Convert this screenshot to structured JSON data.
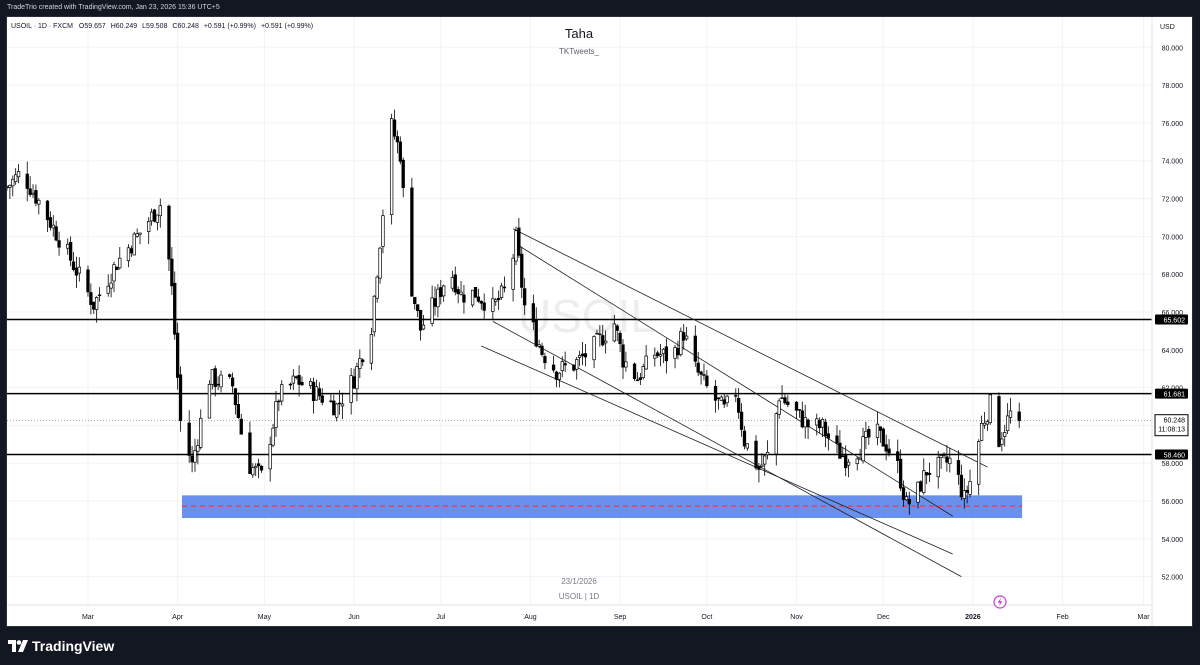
{
  "header": {
    "creator_line": "TradeTrio created with TradingView.com, Jan 23, 2026 15:36 UTC+5"
  },
  "footer": {
    "logo_text": "TradingView"
  },
  "chart_data": {
    "type": "candlestick",
    "title": "Taha",
    "subtitle": "TKTweets_",
    "watermark": "USOIL",
    "legend": {
      "symbol": "USOIL · 1D · FXCM",
      "open": "O59.657",
      "high": "H60.249",
      "low": "L59.508",
      "close": "C60.248",
      "change": "+0.591 (+0.99%)",
      "change_color": "#000000"
    },
    "currency_label": "USD",
    "bottom_caption_date": "23/1/2026",
    "bottom_caption_symbol": "USOIL | 1D",
    "y_axis": {
      "ylim": [
        50.5,
        81.6
      ],
      "ticks": [
        "52.000",
        "54.000",
        "56.000",
        "58.000",
        "60.000",
        "62.000",
        "64.000",
        "66.000",
        "68.000",
        "70.000",
        "72.000",
        "74.000",
        "76.000",
        "78.000",
        "80.000"
      ]
    },
    "x_axis": {
      "labels": [
        "Mar",
        "Apr",
        "May",
        "Jun",
        "Jul",
        "Aug",
        "Sep",
        "Oct",
        "Nov",
        "Dec",
        "2026",
        "Feb",
        "Mar"
      ],
      "label_days": [
        28,
        59,
        89,
        120,
        150,
        181,
        212,
        242,
        273,
        303,
        334,
        365,
        393
      ]
    },
    "price_levels": [
      {
        "value": 65.602,
        "label": "65.602"
      },
      {
        "value": 61.681,
        "label": "61.681"
      },
      {
        "value": 58.46,
        "label": "58.460"
      }
    ],
    "current_price": {
      "value": 60.248,
      "label": "60.248",
      "countdown": "11:08:13"
    },
    "support_zone": {
      "from": 55.1,
      "to": 56.3,
      "midline": 55.73,
      "color": "#4f7de8"
    },
    "channel_lines": [
      {
        "start": [
          175,
          70.4
        ],
        "end": [
          339,
          57.8
        ]
      },
      {
        "start": [
          176,
          69.6
        ],
        "end": [
          327,
          55.2
        ]
      },
      {
        "start": [
          164,
          64.2
        ],
        "end": [
          327,
          53.2
        ]
      },
      {
        "start": [
          168,
          65.5
        ],
        "end": [
          330,
          52.0
        ]
      }
    ],
    "key_points": [
      {
        "x": 0,
        "y": 72.6
      },
      {
        "x": 5,
        "y": 73.4
      },
      {
        "x": 12,
        "y": 71.6
      },
      {
        "x": 22,
        "y": 68.8
      },
      {
        "x": 30,
        "y": 66.4
      },
      {
        "x": 38,
        "y": 68.6
      },
      {
        "x": 47,
        "y": 70.4
      },
      {
        "x": 54,
        "y": 71.9
      },
      {
        "x": 57,
        "y": 67.2
      },
      {
        "x": 60,
        "y": 60.2
      },
      {
        "x": 64,
        "y": 57.9
      },
      {
        "x": 70,
        "y": 62.5
      },
      {
        "x": 78,
        "y": 62.1
      },
      {
        "x": 83,
        "y": 58.0
      },
      {
        "x": 88,
        "y": 57.3
      },
      {
        "x": 94,
        "y": 61.5
      },
      {
        "x": 100,
        "y": 62.4
      },
      {
        "x": 106,
        "y": 61.8
      },
      {
        "x": 114,
        "y": 61.0
      },
      {
        "x": 120,
        "y": 62.5
      },
      {
        "x": 126,
        "y": 65.3
      },
      {
        "x": 130,
        "y": 71.3
      },
      {
        "x": 133,
        "y": 75.8
      },
      {
        "x": 136,
        "y": 74.4
      },
      {
        "x": 139,
        "y": 68.0
      },
      {
        "x": 143,
        "y": 65.1
      },
      {
        "x": 149,
        "y": 66.8
      },
      {
        "x": 153,
        "y": 68.3
      },
      {
        "x": 157,
        "y": 66.9
      },
      {
        "x": 162,
        "y": 67.0
      },
      {
        "x": 168,
        "y": 66.2
      },
      {
        "x": 173,
        "y": 67.3
      },
      {
        "x": 176,
        "y": 69.8
      },
      {
        "x": 179,
        "y": 66.3
      },
      {
        "x": 185,
        "y": 63.9
      },
      {
        "x": 190,
        "y": 62.9
      },
      {
        "x": 196,
        "y": 63.2
      },
      {
        "x": 202,
        "y": 64.0
      },
      {
        "x": 210,
        "y": 65.4
      },
      {
        "x": 213,
        "y": 63.5
      },
      {
        "x": 218,
        "y": 62.5
      },
      {
        "x": 224,
        "y": 63.8
      },
      {
        "x": 230,
        "y": 63.6
      },
      {
        "x": 234,
        "y": 64.9
      },
      {
        "x": 238,
        "y": 63.0
      },
      {
        "x": 243,
        "y": 61.7
      },
      {
        "x": 248,
        "y": 60.8
      },
      {
        "x": 252,
        "y": 61.8
      },
      {
        "x": 255,
        "y": 59.2
      },
      {
        "x": 260,
        "y": 57.7
      },
      {
        "x": 264,
        "y": 58.6
      },
      {
        "x": 267,
        "y": 61.6
      },
      {
        "x": 272,
        "y": 60.8
      },
      {
        "x": 277,
        "y": 60.0
      },
      {
        "x": 282,
        "y": 59.9
      },
      {
        "x": 286,
        "y": 58.8
      },
      {
        "x": 290,
        "y": 58.3
      },
      {
        "x": 295,
        "y": 58.8
      },
      {
        "x": 300,
        "y": 59.7
      },
      {
        "x": 304,
        "y": 59.0
      },
      {
        "x": 308,
        "y": 57.8
      },
      {
        "x": 311,
        "y": 55.8
      },
      {
        "x": 314,
        "y": 56.2
      },
      {
        "x": 318,
        "y": 57.6
      },
      {
        "x": 322,
        "y": 57.8
      },
      {
        "x": 327,
        "y": 58.2
      },
      {
        "x": 331,
        "y": 56.1
      },
      {
        "x": 334,
        "y": 57.5
      },
      {
        "x": 337,
        "y": 60.0
      },
      {
        "x": 340,
        "y": 61.1
      },
      {
        "x": 343,
        "y": 59.3
      },
      {
        "x": 347,
        "y": 60.6
      },
      {
        "x": 350,
        "y": 60.3
      }
    ]
  }
}
